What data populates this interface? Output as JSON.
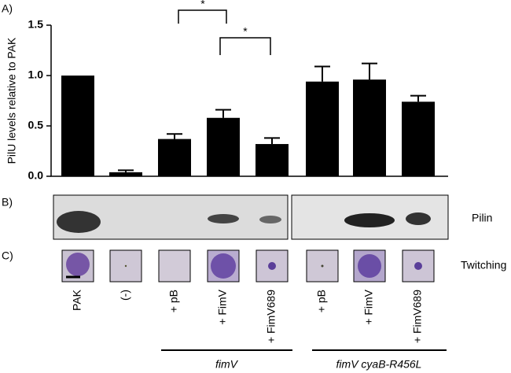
{
  "chart_data": {
    "type": "bar",
    "y_label": "PilU levels relative to PAK",
    "categories": [
      "PAK",
      "(-)",
      "+ pB",
      "+ FimV",
      "+ FimV689",
      "+ pB",
      "+ FimV",
      "+ FimV689"
    ],
    "values": [
      1.0,
      0.04,
      0.37,
      0.58,
      0.32,
      0.94,
      0.96,
      0.74
    ],
    "errors": [
      0,
      0.02,
      0.05,
      0.08,
      0.06,
      0.15,
      0.16,
      0.06
    ],
    "color": "#000000",
    "ylim": [
      0,
      1.5
    ],
    "yticks": [
      {
        "value": 0,
        "label": "0.0"
      },
      {
        "value": 0.5,
        "label": "0.5"
      },
      {
        "value": 1,
        "label": "1.0"
      },
      {
        "value": 1.5,
        "label": "1.5"
      }
    ],
    "annotations": [
      {
        "text": "*"
      },
      {
        "text": "*"
      }
    ],
    "groups": [
      "fimV",
      "fimV cyaB-R456L"
    ]
  },
  "panels": {
    "a": "A)",
    "b": "B)",
    "c": "C)"
  },
  "blot_label": "Pilin",
  "twitch_label": "Twitching"
}
